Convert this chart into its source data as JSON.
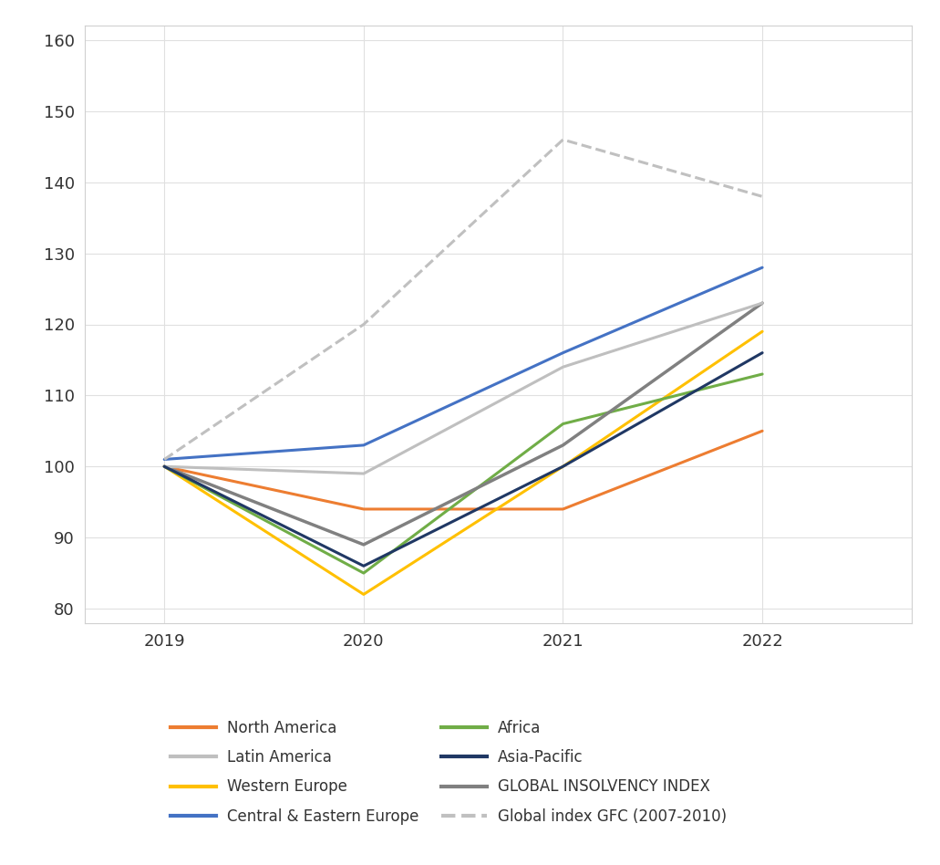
{
  "years": [
    2019,
    2020,
    2021,
    2022
  ],
  "series_order": [
    "North America",
    "Western Europe",
    "Africa",
    "GLOBAL INSOLVENCY INDEX",
    "Latin America",
    "Central & Eastern Europe",
    "Asia-Pacific",
    "Global index GFC (2007-2010)"
  ],
  "series": {
    "North America": {
      "values": [
        100,
        94,
        94,
        105
      ],
      "color": "#ED7D31",
      "linestyle": "solid",
      "linewidth": 2.2
    },
    "Western Europe": {
      "values": [
        100,
        82,
        100,
        119
      ],
      "color": "#FFC000",
      "linestyle": "solid",
      "linewidth": 2.2
    },
    "Africa": {
      "values": [
        100,
        85,
        106,
        113
      ],
      "color": "#70AD47",
      "linestyle": "solid",
      "linewidth": 2.2
    },
    "GLOBAL INSOLVENCY INDEX": {
      "values": [
        100,
        89,
        103,
        123
      ],
      "color": "#808080",
      "linestyle": "solid",
      "linewidth": 2.5
    },
    "Latin America": {
      "values": [
        100,
        99,
        114,
        123
      ],
      "color": "#BFBFBF",
      "linestyle": "solid",
      "linewidth": 2.2
    },
    "Central & Eastern Europe": {
      "values": [
        101,
        103,
        116,
        128
      ],
      "color": "#4472C4",
      "linestyle": "solid",
      "linewidth": 2.2
    },
    "Asia-Pacific": {
      "values": [
        100,
        86,
        100,
        116
      ],
      "color": "#203864",
      "linestyle": "solid",
      "linewidth": 2.2
    },
    "Global index GFC (2007-2010)": {
      "values": [
        101,
        120,
        146,
        138
      ],
      "color": "#C0C0C0",
      "linestyle": "dashed",
      "linewidth": 2.2
    }
  },
  "ylim": [
    78,
    162
  ],
  "yticks": [
    80,
    90,
    100,
    110,
    120,
    130,
    140,
    150,
    160
  ],
  "xticks": [
    2019,
    2020,
    2021,
    2022
  ],
  "background_color": "#FFFFFF",
  "plot_bg_color": "#FFFFFF",
  "grid_color": "#E0E0E0",
  "legend_order": [
    "North America",
    "Latin America",
    "Western Europe",
    "Central & Eastern Europe",
    "Africa",
    "Asia-Pacific",
    "GLOBAL INSOLVENCY INDEX",
    "Global index GFC (2007-2010)"
  ]
}
